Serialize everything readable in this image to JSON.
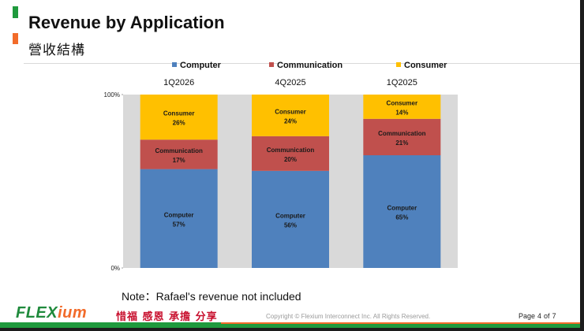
{
  "header": {
    "title": "Revenue by Application",
    "subtitle": "營收結構"
  },
  "chart_data": {
    "type": "bar",
    "stacked": "percent",
    "categories": [
      "1Q2026",
      "4Q2025",
      "1Q2025"
    ],
    "series": [
      {
        "name": "Computer",
        "values": [
          57,
          56,
          65
        ],
        "color": "#4f81bd"
      },
      {
        "name": "Communication",
        "values": [
          17,
          20,
          21
        ],
        "color": "#c0504d"
      },
      {
        "name": "Consumer",
        "values": [
          26,
          24,
          14
        ],
        "color": "#ffc000"
      }
    ],
    "ylim": [
      0,
      100
    ],
    "y_ticks": [
      "0%",
      "100%"
    ],
    "legend_position": "top",
    "grid": false,
    "category_labels_position": "top",
    "plot_background": "#d9d9d9"
  },
  "footnote": "Note：Rafael's revenue not included",
  "footer": {
    "logo_part1": "FLEX",
    "logo_part2": "ium",
    "motto": "惜福 感恩 承擔 分享",
    "copyright": "Copyright © Flexium Interconnect Inc. All Rights Reserved.",
    "page_label": "Page",
    "page_number": "4",
    "page_of": "of",
    "page_total": "7"
  },
  "colors": {
    "brand_green": "#1f9a3d",
    "brand_orange": "#f26b2a",
    "motto_red": "#c8102e"
  }
}
